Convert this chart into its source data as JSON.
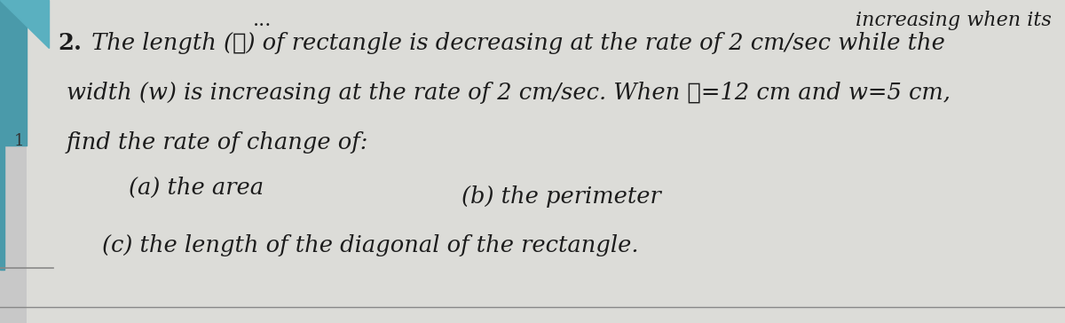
{
  "background_color": "#c8c8c8",
  "page_color": "#e0e0dc",
  "top_right_text": "increasing when its",
  "line1_num": "2.",
  "line1_text": " The length (ℓ) of rectangle is decreasing at the rate of 2 cm/sec while the",
  "line2_text": "width (w) is increasing at the rate of 2 cm/sec. When ℓ=12 cm and w=5 cm,",
  "line3_text": "find the rate of change of:",
  "part_a": "(a) the area",
  "part_b": "(b) the perimeter",
  "part_c": "(c) the length of the diagonal of the rectangle.",
  "font_size_main": 18.5,
  "font_size_top": 16,
  "text_color": "#1c1c1c",
  "teal_color": "#4a9aaa"
}
